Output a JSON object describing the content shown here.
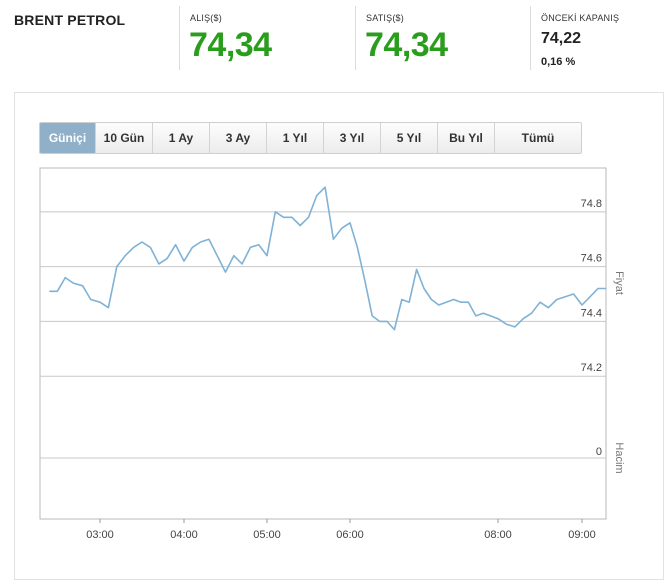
{
  "header": {
    "instrument": "BRENT PETROL",
    "bid": {
      "label": "ALIŞ($)",
      "value": "74,34"
    },
    "ask": {
      "label": "SATIŞ($)",
      "value": "74,34"
    },
    "previous_close": {
      "label": "ÖNCEKİ KAPANIŞ",
      "value": "74,22",
      "change": "0,16 %"
    }
  },
  "range_tabs": [
    "Güniçi",
    "10 Gün",
    "1 Ay",
    "3 Ay",
    "1 Yıl",
    "3 Yıl",
    "5 Yıl",
    "Bu Yıl",
    "Tümü"
  ],
  "active_range": "Güniçi",
  "colors": {
    "price_green": "#2a9d1c",
    "line": "#7fb2d6",
    "active_tab": "#8fb0c8",
    "grid": "#c8c8c8"
  },
  "chart_data": {
    "type": "line",
    "title": "",
    "price_axis_label": "Fiyat",
    "volume_axis_label": "Hacim",
    "grid": true,
    "x_ticks": [
      "03:00",
      "04:00",
      "05:00",
      "06:00",
      "08:00",
      "09:00"
    ],
    "y_ticks": [
      74.8,
      74.6,
      74.4,
      74.2
    ],
    "ylim": [
      74.0,
      74.96
    ],
    "volume_ticks": [
      0
    ],
    "series": [
      {
        "name": "",
        "x": [
          "02:22",
          "02:28",
          "02:34",
          "02:40",
          "02:47",
          "02:53",
          "03:00",
          "03:06",
          "03:12",
          "03:18",
          "03:24",
          "03:30",
          "03:36",
          "03:42",
          "03:48",
          "03:54",
          "04:00",
          "04:06",
          "04:12",
          "04:18",
          "04:24",
          "04:30",
          "04:36",
          "04:42",
          "04:48",
          "04:54",
          "05:00",
          "05:06",
          "05:12",
          "05:18",
          "05:24",
          "05:30",
          "05:36",
          "05:42",
          "05:48",
          "05:54",
          "06:00",
          "06:06",
          "06:12",
          "06:18",
          "06:24",
          "06:30",
          "06:36",
          "06:42",
          "06:48",
          "06:54",
          "07:00",
          "07:06",
          "07:12",
          "07:18",
          "07:24",
          "07:30",
          "07:36",
          "07:42",
          "07:48",
          "07:54",
          "08:00",
          "08:06",
          "08:12",
          "08:18",
          "08:24",
          "08:30",
          "08:36",
          "08:42",
          "08:48",
          "08:54",
          "09:00",
          "09:06",
          "09:12",
          "09:18"
        ],
        "values": [
          74.51,
          74.51,
          74.56,
          74.54,
          74.53,
          74.48,
          74.47,
          74.45,
          74.6,
          74.64,
          74.67,
          74.69,
          74.67,
          74.61,
          74.63,
          74.68,
          74.62,
          74.67,
          74.69,
          74.7,
          74.64,
          74.58,
          74.64,
          74.61,
          74.67,
          74.68,
          74.64,
          74.8,
          74.78,
          74.78,
          74.75,
          74.78,
          74.86,
          74.89,
          74.7,
          74.74,
          74.76,
          74.67,
          74.55,
          74.42,
          74.4,
          74.4,
          74.37,
          74.48,
          74.47,
          74.59,
          74.52,
          74.48,
          74.46,
          74.47,
          74.48,
          74.47,
          74.47,
          74.42,
          74.43,
          74.42,
          74.41,
          74.39,
          74.38,
          74.41,
          74.43,
          74.47,
          74.45,
          74.48,
          74.49,
          74.5,
          74.46,
          74.49,
          74.52,
          74.52
        ]
      }
    ]
  }
}
